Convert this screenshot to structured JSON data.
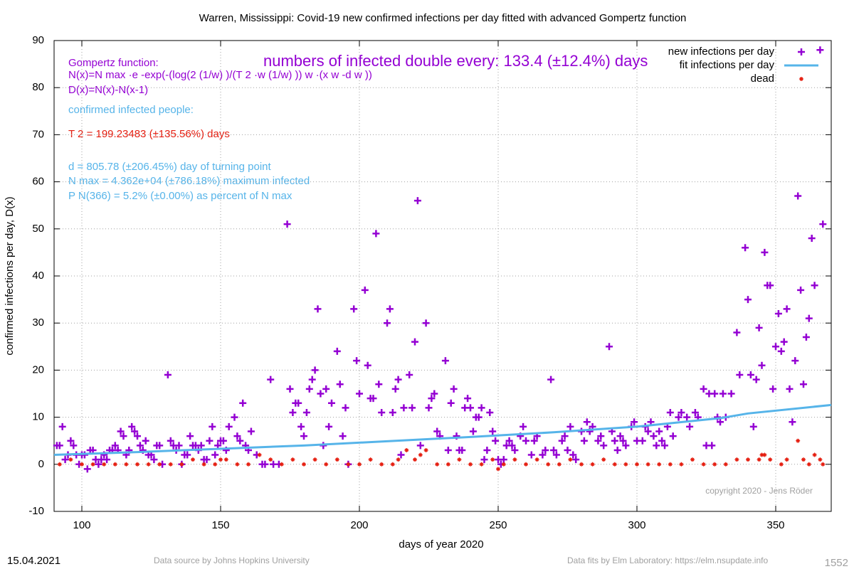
{
  "chart_data": {
    "type": "scatter",
    "title": "Warren,  Mississippi: Covid-19 new confirmed infections per day fitted with advanced Gompertz function",
    "xlabel": "days of year 2020",
    "ylabel": "confirmed infections per day, D(x)",
    "xlim": [
      90,
      370
    ],
    "ylim": [
      -10,
      90
    ],
    "xticks": [
      100,
      150,
      200,
      250,
      300,
      350
    ],
    "yticks": [
      -10,
      0,
      10,
      20,
      30,
      40,
      50,
      60,
      70,
      80,
      90
    ],
    "grid": true,
    "legend": "upper right",
    "series": [
      {
        "name": "new infections per day",
        "color": "#9400d3",
        "marker": "plus",
        "x": [
          91,
          92,
          93,
          94,
          95,
          96,
          97,
          98,
          99,
          100,
          101,
          102,
          103,
          104,
          105,
          106,
          107,
          108,
          109,
          110,
          111,
          112,
          113,
          114,
          115,
          116,
          117,
          118,
          119,
          120,
          121,
          122,
          123,
          124,
          125,
          126,
          127,
          128,
          129,
          131,
          132,
          133,
          134,
          135,
          136,
          137,
          138,
          139,
          140,
          141,
          142,
          143,
          144,
          145,
          146,
          147,
          148,
          149,
          150,
          151,
          152,
          153,
          155,
          156,
          157,
          158,
          159,
          160,
          161,
          163,
          165,
          166,
          168,
          169,
          171,
          174,
          175,
          176,
          177,
          178,
          179,
          180,
          181,
          182,
          183,
          184,
          185,
          186,
          187,
          188,
          189,
          190,
          192,
          193,
          194,
          195,
          196,
          198,
          199,
          200,
          202,
          203,
          204,
          205,
          206,
          207,
          208,
          210,
          211,
          212,
          213,
          214,
          215,
          216,
          218,
          219,
          220,
          221,
          222,
          224,
          225,
          226,
          227,
          228,
          229,
          231,
          232,
          233,
          234,
          235,
          236,
          237,
          238,
          239,
          240,
          241,
          242,
          243,
          244,
          245,
          246,
          247,
          248,
          249,
          250,
          251,
          252,
          253,
          254,
          255,
          256,
          258,
          259,
          260,
          262,
          263,
          264,
          266,
          267,
          269,
          270,
          271,
          273,
          274,
          275,
          276,
          277,
          278,
          280,
          281,
          282,
          283,
          284,
          286,
          287,
          288,
          290,
          291,
          292,
          293,
          294,
          295,
          296,
          298,
          299,
          300,
          302,
          303,
          304,
          305,
          306,
          307,
          308,
          309,
          310,
          311,
          312,
          313,
          315,
          316,
          318,
          319,
          321,
          322,
          324,
          325,
          326,
          327,
          328,
          329,
          330,
          331,
          332,
          334,
          336,
          337,
          339,
          340,
          341,
          342,
          343,
          344,
          345,
          346,
          347,
          348,
          349,
          350,
          351,
          352,
          353,
          354,
          355,
          356,
          357,
          358,
          359,
          360,
          361,
          362,
          363,
          364,
          366,
          367
        ],
        "values": [
          4,
          4,
          8,
          1,
          2,
          5,
          4,
          2,
          0,
          2,
          2,
          -1,
          3,
          3,
          1,
          0,
          1,
          2,
          1,
          3,
          3,
          4,
          3,
          7,
          6,
          2,
          3,
          8,
          7,
          6,
          4,
          3,
          5,
          2,
          2,
          1,
          4,
          4,
          0,
          19,
          5,
          4,
          3,
          4,
          0,
          2,
          2,
          6,
          4,
          4,
          3,
          4,
          1,
          1,
          5,
          8,
          2,
          4,
          5,
          5,
          3,
          8,
          10,
          6,
          5,
          13,
          4,
          3,
          7,
          2,
          0,
          0,
          18,
          0,
          0,
          51,
          16,
          11,
          13,
          13,
          8,
          6,
          11,
          16,
          18,
          20,
          33,
          15,
          4,
          16,
          8,
          13,
          24,
          17,
          6,
          12,
          0,
          33,
          22,
          15,
          37,
          21,
          14,
          14,
          49,
          17,
          11,
          30,
          33,
          11,
          16,
          18,
          2,
          12,
          19,
          12,
          26,
          56,
          4,
          30,
          12,
          14,
          15,
          7,
          6,
          22,
          3,
          13,
          16,
          6,
          3,
          3,
          12,
          14,
          12,
          7,
          10,
          10,
          12,
          1,
          3,
          11,
          7,
          5,
          1,
          0,
          1,
          4,
          5,
          4,
          3,
          6,
          8,
          5,
          2,
          5,
          6,
          2,
          3,
          18,
          3,
          2,
          5,
          6,
          3,
          8,
          2,
          1,
          7,
          5,
          9,
          7,
          8,
          5,
          6,
          4,
          25,
          7,
          5,
          3,
          6,
          5,
          4,
          8,
          9,
          5,
          5,
          8,
          7,
          9,
          6,
          4,
          7,
          5,
          4,
          8,
          11,
          6,
          10,
          11,
          10,
          8,
          11,
          10,
          16,
          4,
          15,
          4,
          15,
          10,
          9,
          15,
          10,
          15,
          28,
          19,
          46,
          35,
          19,
          8,
          18,
          29,
          21,
          45,
          38,
          38,
          16,
          25,
          32,
          24,
          26,
          33,
          16,
          9,
          22,
          57,
          37,
          17,
          27,
          31,
          48,
          38,
          88,
          51
        ]
      },
      {
        "name": "fit infections per day",
        "color": "#56b4e9",
        "marker": "line",
        "x": [
          90,
          120,
          150,
          180,
          210,
          240,
          270,
          300,
          330,
          340,
          370
        ],
        "values": [
          2,
          2.6,
          3.3,
          4,
          4.9,
          5.8,
          6.8,
          8,
          9.8,
          10.8,
          12.6
        ]
      },
      {
        "name": "dead",
        "color": "#e51e10",
        "marker": "star",
        "x": [
          92,
          96,
          100,
          104,
          108,
          112,
          116,
          120,
          124,
          128,
          132,
          136,
          140,
          144,
          148,
          150,
          152,
          156,
          160,
          164,
          168,
          172,
          176,
          180,
          184,
          188,
          192,
          196,
          200,
          204,
          208,
          212,
          214,
          217,
          220,
          222,
          224,
          228,
          232,
          236,
          240,
          244,
          248,
          250,
          252,
          256,
          260,
          264,
          268,
          272,
          276,
          280,
          284,
          288,
          292,
          296,
          300,
          304,
          308,
          312,
          316,
          320,
          324,
          328,
          332,
          336,
          340,
          344,
          345,
          346,
          348,
          352,
          354,
          358,
          360,
          362,
          364,
          366,
          367
        ],
        "values": [
          0,
          1,
          0,
          0,
          0,
          0,
          0,
          0,
          0,
          0,
          0,
          0,
          1,
          0,
          0,
          1,
          1,
          0,
          0,
          2,
          1,
          0,
          1,
          0,
          1,
          0,
          1,
          0,
          0,
          1,
          0,
          0,
          1,
          3,
          1,
          2,
          3,
          0,
          0,
          1,
          0,
          0,
          1,
          -1,
          0,
          1,
          0,
          1,
          0,
          0,
          1,
          0,
          0,
          1,
          0,
          0,
          0,
          0,
          0,
          0,
          0,
          1,
          0,
          0,
          0,
          1,
          1,
          1,
          2,
          2,
          1,
          0,
          1,
          5,
          1,
          0,
          2,
          1,
          0
        ]
      }
    ],
    "annotations": [
      "Gompertz function:",
      "N(x)=N max ·e -exp(-(log(2 (1/w) )/(T 2 ·w (1/w) )) w ·(x w -d w ))",
      "D(x)=N(x)-N(x-1)",
      "confirmed infected people:",
      "T 2 = 199.23483 (±135.56%) days",
      "d = 805.78 (±206.45%) day of turning point",
      "N max = 4.362e+04 (±786.18%) maximum infected",
      "P N(366) = 5.2% (±0.00%) as percent of N max",
      "numbers of infected double every: 133.4 (±12.4%) days",
      "copyright 2020 - Jens Röder"
    ],
    "footer": {
      "date": "15.04.2021",
      "source": "Data source by Johns Hopkins University",
      "fits": "Data fits by Elm Laboratory: https://elm.nsupdate.info",
      "id": "1552"
    }
  }
}
